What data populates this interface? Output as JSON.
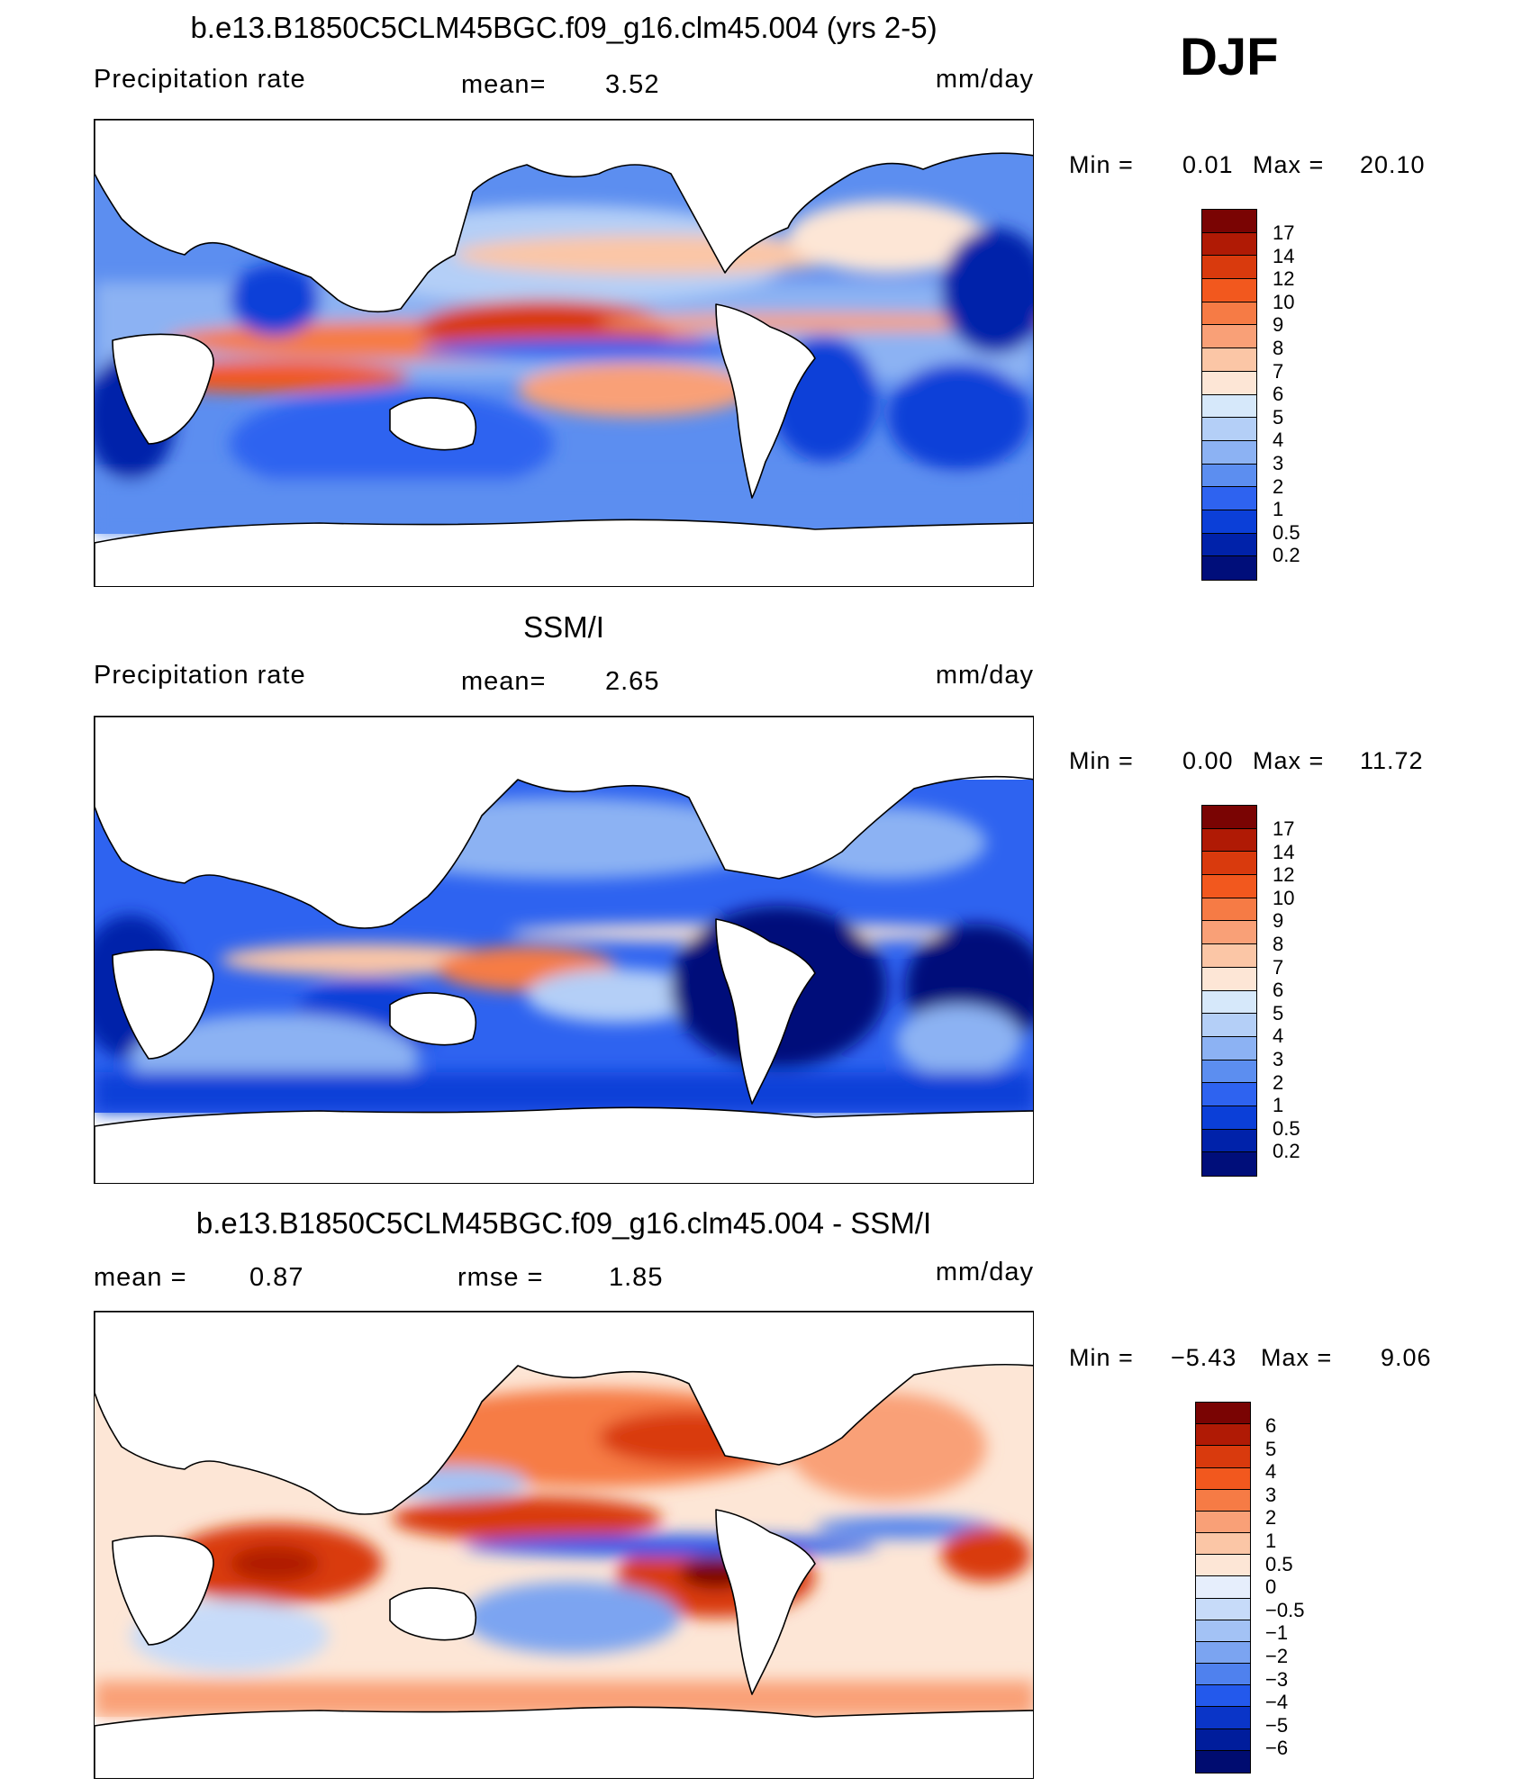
{
  "season": "DJF",
  "panels": [
    {
      "title": "b.e13.B1850C5CLM45BGC.f09_g16.clm45.004 (yrs 2-5)",
      "left_label": "Precipitation  rate",
      "center_label": "mean=",
      "center_value": "3.52",
      "units": "mm/day",
      "min_label": "Min  =",
      "min_value": "0.01",
      "max_label": "Max  =",
      "max_value": "20.10",
      "colorbar_labels": [
        "17",
        "14",
        "12",
        "10",
        "9",
        "8",
        "7",
        "6",
        "5",
        "4",
        "3",
        "2",
        "1",
        "0.5",
        "0.2"
      ]
    },
    {
      "title": "SSM/I",
      "left_label": "Precipitation  rate",
      "center_label": "mean=",
      "center_value": "2.65",
      "units": "mm/day",
      "min_label": "Min  =",
      "min_value": "0.00",
      "max_label": "Max  =",
      "max_value": "11.72",
      "colorbar_labels": [
        "17",
        "14",
        "12",
        "10",
        "9",
        "8",
        "7",
        "6",
        "5",
        "4",
        "3",
        "2",
        "1",
        "0.5",
        "0.2"
      ]
    },
    {
      "title": "b.e13.B1850C5CLM45BGC.f09_g16.clm45.004 - SSM/I",
      "left_label": "mean  =",
      "left_value": "0.87",
      "center_label": "rmse  =",
      "center_value": "1.85",
      "units": "mm/day",
      "min_label": "Min  =",
      "min_value": "−5.43",
      "max_label": "Max  =",
      "max_value": "9.06",
      "colorbar_labels": [
        "6",
        "5",
        "4",
        "3",
        "2",
        "1",
        "0.5",
        "0",
        "−0.5",
        "−1",
        "−2",
        "−3",
        "−4",
        "−5",
        "−6"
      ]
    }
  ],
  "colors": {
    "precip_scale": [
      "#7a0403",
      "#b01a05",
      "#d93a0d",
      "#f2581e",
      "#f67b45",
      "#f9a077",
      "#fbc6a6",
      "#fde6d6",
      "#d6e8fa",
      "#b4cff7",
      "#8cb2f3",
      "#5c8ef0",
      "#2e63f0",
      "#0b3fd8",
      "#0022aa",
      "#000e7a"
    ],
    "diff_scale": [
      "#7a0403",
      "#b01a05",
      "#d93a0d",
      "#f2581e",
      "#f67b45",
      "#f9a077",
      "#fbc6a6",
      "#fde6d6",
      "#e6eefc",
      "#c7dbf9",
      "#a3c2f5",
      "#7ba4f1",
      "#4f81ee",
      "#2359ec",
      "#0a35c8",
      "#001d9c",
      "#000c70"
    ]
  }
}
